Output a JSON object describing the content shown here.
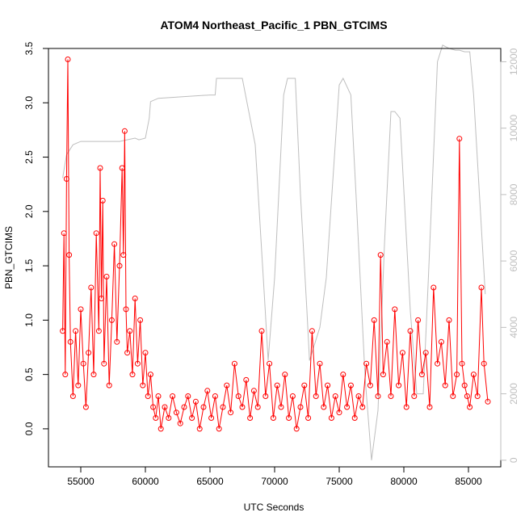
{
  "chart_data": {
    "type": "line",
    "title": "ATOM4 Northeast_Pacific_1 PBN_GTCIMS",
    "xlabel": "UTC Seconds",
    "ylabel": "PBN_GTCIMS",
    "xlim": [
      52500,
      87500
    ],
    "ylim": [
      -0.35,
      3.5
    ],
    "y2lim": [
      -200,
      12400
    ],
    "x_ticks": [
      55000,
      60000,
      65000,
      70000,
      75000,
      80000,
      85000
    ],
    "y_ticks": [
      0.0,
      0.5,
      1.0,
      1.5,
      2.0,
      2.5,
      3.0,
      3.5
    ],
    "y2_ticks": [
      0,
      2000,
      4000,
      6000,
      8000,
      10000,
      12000
    ],
    "x_tick_labels": [
      "55000",
      "60000",
      "65000",
      "70000",
      "75000",
      "80000",
      "85000"
    ],
    "y_tick_labels": [
      "0.0",
      "0.5",
      "1.0",
      "1.5",
      "2.0",
      "2.5",
      "3.0",
      "3.5"
    ],
    "y2_tick_labels": [
      "0",
      "2000",
      "4000",
      "6000",
      "8000",
      "10000",
      "12000"
    ],
    "colors": {
      "pbn": "#ff0000",
      "altitude": "#bebebe",
      "axis": "#000000"
    },
    "grid": false,
    "series": [
      {
        "name": "",
        "style": "line-with-open-circles",
        "color": "#ff0000",
        "x": [
          53600,
          53700,
          53800,
          53900,
          54000,
          54100,
          54200,
          54400,
          54600,
          54800,
          55000,
          55200,
          55400,
          55600,
          55800,
          56000,
          56200,
          56400,
          56500,
          56600,
          56700,
          56800,
          57000,
          57200,
          57400,
          57600,
          57800,
          58000,
          58200,
          58300,
          58400,
          58500,
          58600,
          58800,
          59000,
          59200,
          59400,
          59600,
          59800,
          60000,
          60200,
          60400,
          60600,
          60800,
          61000,
          61200,
          61500,
          61800,
          62100,
          62400,
          62700,
          63000,
          63300,
          63600,
          63900,
          64200,
          64500,
          64800,
          65100,
          65400,
          65700,
          66000,
          66300,
          66600,
          66900,
          67200,
          67500,
          67800,
          68100,
          68400,
          68700,
          69000,
          69300,
          69600,
          69900,
          70200,
          70500,
          70800,
          71100,
          71400,
          71700,
          72000,
          72300,
          72600,
          72900,
          73200,
          73500,
          73800,
          74100,
          74400,
          74700,
          75000,
          75300,
          75600,
          75900,
          76200,
          76500,
          76800,
          77100,
          77400,
          77700,
          78000,
          78200,
          78400,
          78700,
          79000,
          79300,
          79600,
          79900,
          80200,
          80500,
          80800,
          81100,
          81400,
          81700,
          82000,
          82300,
          82600,
          82900,
          83200,
          83500,
          83800,
          84100,
          84300,
          84500,
          84700,
          84900,
          85100,
          85400,
          85700,
          86000,
          86200,
          86500
        ],
        "y": [
          0.9,
          1.8,
          0.5,
          2.3,
          3.4,
          1.6,
          0.8,
          0.3,
          0.9,
          0.4,
          1.1,
          0.6,
          0.2,
          0.7,
          1.3,
          0.5,
          1.8,
          0.9,
          2.4,
          1.2,
          2.1,
          0.6,
          1.4,
          0.4,
          1.0,
          1.7,
          0.8,
          1.5,
          2.4,
          1.6,
          2.74,
          1.1,
          0.7,
          0.9,
          0.5,
          1.2,
          0.6,
          1.0,
          0.4,
          0.7,
          0.3,
          0.5,
          0.2,
          0.1,
          0.3,
          0.0,
          0.2,
          0.1,
          0.3,
          0.15,
          0.05,
          0.2,
          0.3,
          0.1,
          0.25,
          0.0,
          0.2,
          0.35,
          0.1,
          0.3,
          0.0,
          0.2,
          0.4,
          0.15,
          0.6,
          0.3,
          0.2,
          0.45,
          0.1,
          0.35,
          0.2,
          0.9,
          0.3,
          0.6,
          0.1,
          0.4,
          0.2,
          0.5,
          0.1,
          0.3,
          0.0,
          0.2,
          0.4,
          0.1,
          0.9,
          0.3,
          0.6,
          0.2,
          0.4,
          0.1,
          0.3,
          0.15,
          0.5,
          0.2,
          0.4,
          0.1,
          0.3,
          0.2,
          0.6,
          0.4,
          1.0,
          0.3,
          1.6,
          0.5,
          0.8,
          0.3,
          1.1,
          0.4,
          0.7,
          0.2,
          0.9,
          0.3,
          1.0,
          0.5,
          0.7,
          0.2,
          1.3,
          0.6,
          0.8,
          0.4,
          1.0,
          0.3,
          0.5,
          2.67,
          0.6,
          0.4,
          0.3,
          0.2,
          0.5,
          0.3,
          1.3,
          0.6,
          0.25
        ]
      },
      {
        "name": "",
        "style": "line",
        "axis": "right",
        "color": "#bebebe",
        "x": [
          53600,
          53900,
          54400,
          55000,
          58000,
          59200,
          59500,
          60000,
          60300,
          60400,
          61000,
          63000,
          65000,
          65400,
          65500,
          66000,
          67500,
          68500,
          69200,
          69500,
          70000,
          70700,
          71000,
          71600,
          72000,
          72500,
          72700,
          73100,
          73500,
          74000,
          75000,
          75300,
          75900,
          76300,
          77000,
          77500,
          78000,
          78500,
          79000,
          79300,
          79700,
          80500,
          81000,
          81500,
          81900,
          82600,
          83000,
          83500,
          84000,
          84300,
          84700,
          85100,
          85400,
          85700,
          86000,
          86300
        ],
        "y": [
          8500,
          9200,
          9500,
          9600,
          9600,
          9700,
          9650,
          9700,
          10300,
          10800,
          10900,
          10950,
          11000,
          11000,
          11500,
          11500,
          11500,
          9500,
          5000,
          3000,
          5500,
          11000,
          11500,
          11500,
          8000,
          4500,
          3000,
          3500,
          4000,
          5500,
          11300,
          11500,
          11000,
          8000,
          2500,
          0,
          1500,
          6500,
          10500,
          10500,
          10300,
          4500,
          2000,
          2000,
          5500,
          12000,
          12500,
          12400,
          12350,
          12350,
          12300,
          12300,
          11000,
          9000,
          7000,
          5000
        ]
      }
    ]
  }
}
